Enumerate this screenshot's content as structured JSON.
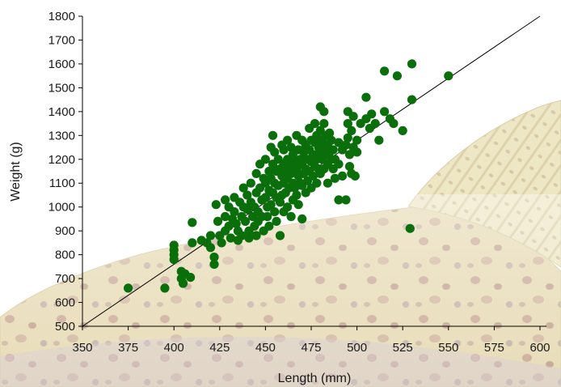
{
  "chart_data": {
    "type": "scatter",
    "title": "",
    "xlabel": "Length (mm)",
    "ylabel": "Weight (g)",
    "xlim": [
      350,
      600
    ],
    "ylim": [
      500,
      1800
    ],
    "xticks": [
      350,
      375,
      400,
      425,
      450,
      475,
      500,
      525,
      550,
      575,
      600
    ],
    "yticks": [
      500,
      600,
      700,
      800,
      900,
      1000,
      1100,
      1200,
      1300,
      1400,
      1500,
      1600,
      1700,
      1800
    ],
    "grid": false,
    "legend": "none",
    "marker_color": "#0a6e0a",
    "trend_line": {
      "from": [
        350,
        500
      ],
      "to": [
        600,
        1800
      ],
      "color": "#000000"
    },
    "background_art": "brown-trout-illustration",
    "points": [
      [
        375,
        660
      ],
      [
        395,
        660
      ],
      [
        400,
        840
      ],
      [
        400,
        820
      ],
      [
        400,
        800
      ],
      [
        400,
        780
      ],
      [
        404,
        730
      ],
      [
        404,
        700
      ],
      [
        405,
        680
      ],
      [
        406,
        720
      ],
      [
        409,
        705
      ],
      [
        410,
        935
      ],
      [
        410,
        850
      ],
      [
        415,
        860
      ],
      [
        418,
        850
      ],
      [
        420,
        880
      ],
      [
        420,
        830
      ],
      [
        422,
        790
      ],
      [
        422,
        760
      ],
      [
        423,
        1010
      ],
      [
        424,
        940
      ],
      [
        425,
        880
      ],
      [
        426,
        850
      ],
      [
        428,
        1030
      ],
      [
        428,
        960
      ],
      [
        428,
        900
      ],
      [
        430,
        1000
      ],
      [
        430,
        920
      ],
      [
        431,
        870
      ],
      [
        432,
        950
      ],
      [
        433,
        1040
      ],
      [
        433,
        980
      ],
      [
        434,
        930
      ],
      [
        435,
        900
      ],
      [
        435,
        860
      ],
      [
        436,
        1020
      ],
      [
        437,
        960
      ],
      [
        437,
        880
      ],
      [
        438,
        1080
      ],
      [
        438,
        1000
      ],
      [
        439,
        940
      ],
      [
        440,
        1050
      ],
      [
        440,
        990
      ],
      [
        441,
        900
      ],
      [
        441,
        870
      ],
      [
        442,
        1100
      ],
      [
        442,
        1020
      ],
      [
        443,
        960
      ],
      [
        444,
        1000
      ],
      [
        444,
        920
      ],
      [
        445,
        1140
      ],
      [
        445,
        1060
      ],
      [
        445,
        880
      ],
      [
        446,
        980
      ],
      [
        446,
        940
      ],
      [
        447,
        1180
      ],
      [
        447,
        1080
      ],
      [
        448,
        1030
      ],
      [
        448,
        960
      ],
      [
        449,
        1120
      ],
      [
        449,
        900
      ],
      [
        450,
        1200
      ],
      [
        450,
        1100
      ],
      [
        450,
        1040
      ],
      [
        451,
        1000
      ],
      [
        451,
        960
      ],
      [
        452,
        1150
      ],
      [
        452,
        1070
      ],
      [
        452,
        920
      ],
      [
        453,
        1250
      ],
      [
        453,
        1120
      ],
      [
        453,
        1010
      ],
      [
        454,
        1300
      ],
      [
        454,
        1180
      ],
      [
        454,
        1060
      ],
      [
        455,
        1230
      ],
      [
        455,
        1100
      ],
      [
        455,
        980
      ],
      [
        456,
        1150
      ],
      [
        456,
        1040
      ],
      [
        456,
        940
      ],
      [
        457,
        1200
      ],
      [
        457,
        1090
      ],
      [
        458,
        1160
      ],
      [
        458,
        1020
      ],
      [
        458,
        880
      ],
      [
        459,
        1260
      ],
      [
        459,
        1130
      ],
      [
        459,
        1050
      ],
      [
        460,
        1240
      ],
      [
        460,
        1180
      ],
      [
        460,
        1100
      ],
      [
        460,
        980
      ],
      [
        461,
        1150
      ],
      [
        461,
        1060
      ],
      [
        462,
        1280
      ],
      [
        462,
        1200
      ],
      [
        462,
        1120
      ],
      [
        462,
        1000
      ],
      [
        463,
        1170
      ],
      [
        463,
        1080
      ],
      [
        464,
        1250
      ],
      [
        464,
        1140
      ],
      [
        464,
        960
      ],
      [
        465,
        1220
      ],
      [
        465,
        1100
      ],
      [
        465,
        1030
      ],
      [
        466,
        1190
      ],
      [
        466,
        1080
      ],
      [
        467,
        1300
      ],
      [
        467,
        1160
      ],
      [
        467,
        1050
      ],
      [
        468,
        1240
      ],
      [
        468,
        1130
      ],
      [
        468,
        1010
      ],
      [
        469,
        1200
      ],
      [
        469,
        1100
      ],
      [
        470,
        1280
      ],
      [
        470,
        1180
      ],
      [
        470,
        1090
      ],
      [
        470,
        950
      ],
      [
        471,
        1230
      ],
      [
        471,
        1140
      ],
      [
        472,
        1260
      ],
      [
        472,
        1160
      ],
      [
        472,
        1060
      ],
      [
        473,
        1200
      ],
      [
        473,
        1110
      ],
      [
        474,
        1330
      ],
      [
        474,
        1240
      ],
      [
        474,
        1150
      ],
      [
        475,
        1280
      ],
      [
        475,
        1190
      ],
      [
        475,
        1080
      ],
      [
        476,
        1220
      ],
      [
        476,
        1130
      ],
      [
        477,
        1350
      ],
      [
        477,
        1270
      ],
      [
        477,
        1170
      ],
      [
        478,
        1300
      ],
      [
        478,
        1200
      ],
      [
        478,
        1100
      ],
      [
        479,
        1250
      ],
      [
        479,
        1160
      ],
      [
        480,
        1420
      ],
      [
        480,
        1320
      ],
      [
        480,
        1230
      ],
      [
        480,
        1140
      ],
      [
        481,
        1280
      ],
      [
        481,
        1200
      ],
      [
        482,
        1400
      ],
      [
        482,
        1350
      ],
      [
        482,
        1250
      ],
      [
        482,
        1160
      ],
      [
        483,
        1300
      ],
      [
        483,
        1220
      ],
      [
        484,
        1260
      ],
      [
        484,
        1180
      ],
      [
        484,
        1100
      ],
      [
        485,
        1310
      ],
      [
        485,
        1230
      ],
      [
        486,
        1280
      ],
      [
        486,
        1200
      ],
      [
        487,
        1240
      ],
      [
        487,
        1160
      ],
      [
        488,
        1200
      ],
      [
        488,
        1120
      ],
      [
        490,
        1270
      ],
      [
        490,
        1180
      ],
      [
        490,
        1030
      ],
      [
        492,
        1240
      ],
      [
        492,
        1130
      ],
      [
        494,
        1260
      ],
      [
        494,
        1030
      ],
      [
        495,
        1400
      ],
      [
        495,
        1350
      ],
      [
        495,
        1290
      ],
      [
        496,
        1220
      ],
      [
        496,
        1170
      ],
      [
        497,
        1320
      ],
      [
        497,
        1140
      ],
      [
        498,
        1380
      ],
      [
        498,
        1250
      ],
      [
        499,
        1130
      ],
      [
        500,
        1280
      ],
      [
        500,
        1230
      ],
      [
        502,
        1350
      ],
      [
        505,
        1460
      ],
      [
        505,
        1370
      ],
      [
        507,
        1330
      ],
      [
        508,
        1390
      ],
      [
        510,
        1350
      ],
      [
        512,
        1280
      ],
      [
        515,
        1570
      ],
      [
        515,
        1400
      ],
      [
        518,
        1370
      ],
      [
        520,
        1350
      ],
      [
        522,
        1550
      ],
      [
        525,
        1320
      ],
      [
        529,
        910
      ],
      [
        530,
        1600
      ],
      [
        530,
        1450
      ],
      [
        550,
        1550
      ]
    ]
  }
}
